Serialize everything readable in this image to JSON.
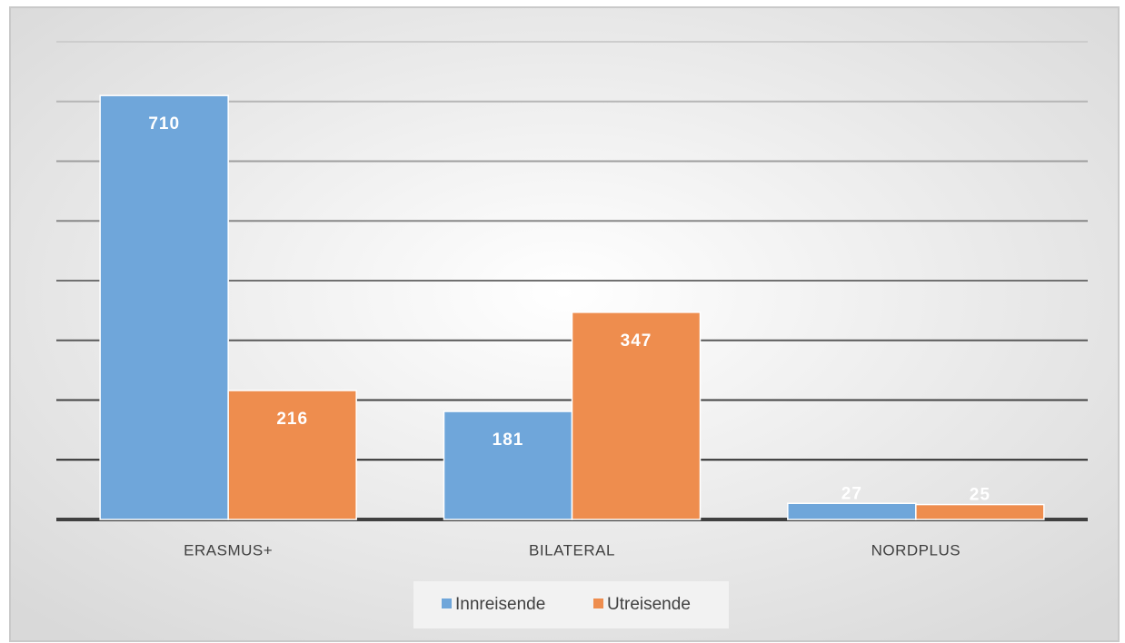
{
  "chart_data": {
    "type": "bar",
    "categories": [
      "ERASMUS+",
      "BILATERAL",
      "NORDPLUS"
    ],
    "series": [
      {
        "name": "Innreisende",
        "color": "#6fa6da",
        "values": [
          710,
          181,
          27
        ]
      },
      {
        "name": "Utreisende",
        "color": "#ee8d4e",
        "values": [
          216,
          347,
          25
        ]
      }
    ],
    "ylim": [
      0,
      800
    ],
    "yticks": [
      0,
      100,
      200,
      300,
      400,
      500,
      600,
      700,
      800
    ],
    "grid": true,
    "legend": "bottom"
  }
}
